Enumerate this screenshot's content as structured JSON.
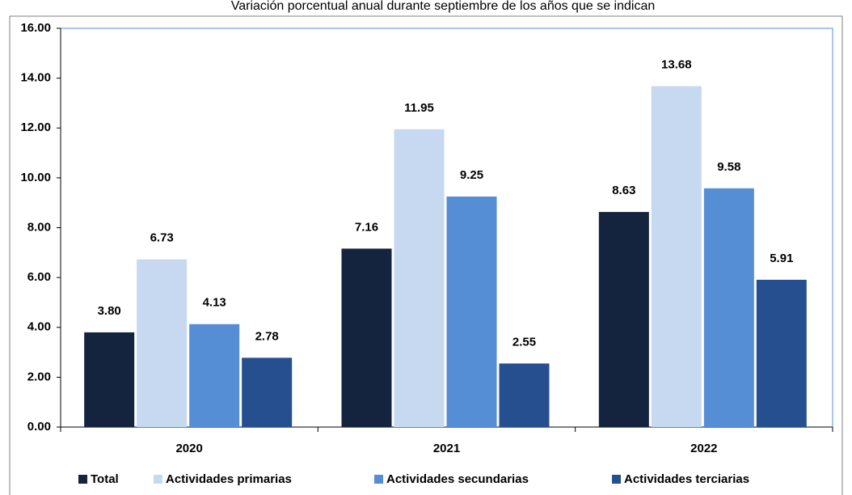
{
  "chart_data": {
    "type": "bar",
    "title": "Variación porcentual anual durante septiembre de los años que se indican",
    "categories": [
      "2020",
      "2021",
      "2022"
    ],
    "series": [
      {
        "name": "Total",
        "color": "#14243f",
        "values": [
          3.8,
          7.16,
          8.63
        ],
        "value_labels": [
          "3.80",
          "7.16",
          "8.63"
        ]
      },
      {
        "name": "Actividades primarias",
        "color": "#c6d9f0",
        "values": [
          6.73,
          11.95,
          13.68
        ],
        "value_labels": [
          "6.73",
          "11.95",
          "13.68"
        ]
      },
      {
        "name": "Actividades secundarias",
        "color": "#558ed5",
        "values": [
          4.13,
          9.25,
          9.58
        ],
        "value_labels": [
          "4.13",
          "9.25",
          "9.58"
        ]
      },
      {
        "name": "Actividades terciarias",
        "color": "#254f8f",
        "values": [
          2.78,
          2.55,
          5.91
        ],
        "value_labels": [
          "2.78",
          "2.55",
          "5.91"
        ]
      }
    ],
    "ylim": [
      0,
      16
    ],
    "yticks": [
      {
        "value": 0,
        "label": "0.00"
      },
      {
        "value": 2,
        "label": "2.00"
      },
      {
        "value": 4,
        "label": "4.00"
      },
      {
        "value": 6,
        "label": "6.00"
      },
      {
        "value": 8,
        "label": "8.00"
      },
      {
        "value": 10,
        "label": "10.00"
      },
      {
        "value": 12,
        "label": "12.00"
      },
      {
        "value": 14,
        "label": "14.00"
      },
      {
        "value": 16,
        "label": "16.00"
      }
    ],
    "legend": "bottom"
  }
}
